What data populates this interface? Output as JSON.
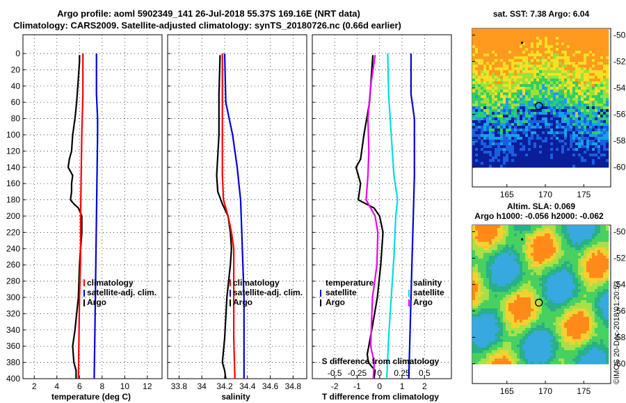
{
  "header": {
    "title_line1": "Argo profile: aoml 5902349_141 26-Jul-2018 55.37S 169.16E (NRT data)",
    "title_line2": "Climatology: CARS2009. Satellite-adjusted climatology: synTS_20180726.nc (0.66d earlier)"
  },
  "colors": {
    "argo": "#000000",
    "climatology": "#ff0000",
    "satellite_adj": "#0000dd",
    "s_difference": "#00dddd",
    "s_diff_clim": "#ee00ee"
  },
  "chart_data": [
    {
      "type": "line",
      "name": "temperature",
      "xlabel": "temperature (deg C)",
      "ylabel": "",
      "xlim": [
        1,
        13.3
      ],
      "ylim": [
        400,
        0
      ],
      "xticks": [
        "2",
        "4",
        "6",
        "8",
        "10",
        "12"
      ],
      "xtick_values": [
        2,
        4,
        6,
        8,
        10,
        12
      ],
      "yticks": [
        "0",
        "20",
        "40",
        "60",
        "80",
        "100",
        "120",
        "140",
        "160",
        "180",
        "200",
        "220",
        "240",
        "260",
        "280",
        "300",
        "320",
        "340",
        "360",
        "380",
        "400"
      ],
      "ytick_values": [
        0,
        20,
        40,
        60,
        80,
        100,
        120,
        140,
        160,
        180,
        200,
        220,
        240,
        260,
        280,
        300,
        320,
        340,
        360,
        380,
        400
      ],
      "grid": true,
      "legend": [
        "climatology",
        "satellite-adj. clim.",
        "Argo"
      ],
      "series": [
        {
          "name": "Argo",
          "color": "#000000",
          "depth": [
            2,
            10,
            20,
            40,
            60,
            80,
            100,
            120,
            130,
            140,
            150,
            160,
            170,
            180,
            185,
            190,
            200,
            220,
            260,
            300,
            340,
            360,
            380,
            390,
            400
          ],
          "values": [
            6.0,
            6.0,
            5.95,
            5.85,
            5.75,
            5.6,
            5.4,
            5.3,
            5.1,
            5.0,
            5.4,
            5.3,
            5.3,
            5.2,
            5.5,
            5.9,
            6.2,
            6.2,
            6.0,
            5.9,
            5.6,
            5.4,
            5.5,
            5.7,
            5.7
          ]
        },
        {
          "name": "climatology",
          "color": "#ff0000",
          "depth": [
            0,
            50,
            100,
            150,
            200,
            250,
            300,
            350,
            400
          ],
          "values": [
            6.3,
            6.3,
            6.2,
            6.15,
            6.1,
            6.1,
            6.0,
            5.95,
            5.9
          ]
        },
        {
          "name": "satellite-adj. clim.",
          "color": "#0000dd",
          "depth": [
            0,
            50,
            80,
            100,
            150,
            200,
            250,
            300,
            350,
            400
          ],
          "values": [
            7.5,
            7.5,
            7.6,
            7.6,
            7.55,
            7.5,
            7.45,
            7.4,
            7.35,
            7.3
          ]
        }
      ]
    },
    {
      "type": "line",
      "name": "salinity",
      "xlabel": "salinity",
      "xlim": [
        33.7,
        34.92
      ],
      "ylim": [
        400,
        0
      ],
      "xticks": [
        "33.8",
        "34",
        "34.2",
        "34.4",
        "34.6",
        "34.8"
      ],
      "xtick_values": [
        33.8,
        34.0,
        34.2,
        34.4,
        34.6,
        34.8
      ],
      "grid": true,
      "legend": [
        "climatology",
        "satellite-adj. clim.",
        "Argo"
      ],
      "series": [
        {
          "name": "Argo",
          "color": "#000000",
          "depth": [
            2,
            50,
            100,
            150,
            170,
            185,
            200,
            220,
            240,
            260,
            300,
            350,
            380,
            390,
            400
          ],
          "values": [
            34.16,
            34.15,
            34.15,
            34.13,
            34.14,
            34.18,
            34.23,
            34.25,
            34.26,
            34.25,
            34.22,
            34.2,
            34.18,
            34.2,
            34.21
          ]
        },
        {
          "name": "climatology",
          "color": "#ff0000",
          "depth": [
            0,
            50,
            100,
            150,
            180,
            200,
            220,
            240,
            300,
            350,
            400
          ],
          "values": [
            34.18,
            34.18,
            34.18,
            34.18,
            34.19,
            34.23,
            34.26,
            34.28,
            34.28,
            34.28,
            34.29
          ]
        },
        {
          "name": "satellite-adj. clim.",
          "color": "#0000dd",
          "depth": [
            0,
            60,
            100,
            140,
            180,
            220,
            260,
            300,
            350,
            400
          ],
          "values": [
            34.2,
            34.21,
            34.27,
            34.31,
            34.34,
            34.35,
            34.36,
            34.37,
            34.37,
            34.37
          ]
        }
      ]
    },
    {
      "type": "line",
      "name": "differences",
      "xlabel": "T difference from climatology",
      "xlabel_top": "S difference from climatology",
      "xlim": [
        -3,
        3.2
      ],
      "ylim": [
        400,
        0
      ],
      "xticks": [
        "-2",
        "-1",
        "0",
        "1",
        "2"
      ],
      "xtick_values": [
        -2,
        -1,
        0,
        1,
        2
      ],
      "xticks_s": [
        "-0.5",
        "-0.25",
        "0",
        "0.25",
        "0.5"
      ],
      "xtick_values_s": [
        -0.5,
        -0.25,
        0,
        0.25,
        0.5
      ],
      "grid": true,
      "legend_left_title": "temperature",
      "legend_left": [
        "satellite",
        "Argo"
      ],
      "legend_right_title": "salinity",
      "legend_right": [
        "satellite",
        "Argo"
      ],
      "series": [
        {
          "name": "T Argo - clim",
          "color": "#000000",
          "depth": [
            2,
            20,
            60,
            100,
            130,
            140,
            160,
            180,
            190,
            200,
            220,
            260,
            300,
            340,
            370,
            380,
            390,
            400
          ],
          "values": [
            -0.3,
            -0.35,
            -0.45,
            -0.7,
            -0.85,
            -1.05,
            -0.85,
            -0.95,
            -0.25,
            0.0,
            0.15,
            0.05,
            -0.1,
            -0.35,
            -0.55,
            -0.5,
            -0.2,
            -0.25
          ]
        },
        {
          "name": "S Argo - clim",
          "color": "#ee00ee",
          "depth": [
            2,
            40,
            80,
            120,
            150,
            180,
            190,
            200,
            220,
            260,
            300,
            360,
            380,
            400
          ],
          "values": [
            -0.05,
            -0.1,
            -0.13,
            -0.12,
            -0.13,
            -0.15,
            -0.1,
            -0.05,
            -0.02,
            -0.03,
            -0.08,
            -0.1,
            -0.06,
            -0.07
          ]
        },
        {
          "name": "S satellite - clim",
          "color": "#00dddd",
          "depth": [
            0,
            50,
            100,
            150,
            180,
            200,
            250,
            300,
            350,
            400
          ],
          "values": [
            0.09,
            0.1,
            0.13,
            0.16,
            0.2,
            0.18,
            0.16,
            0.13,
            0.1,
            0.08
          ]
        },
        {
          "name": "T satellite - clim",
          "color": "#0000dd",
          "depth": [
            0,
            50,
            80,
            100,
            150,
            200,
            250,
            300,
            350,
            400
          ],
          "values": [
            1.4,
            1.4,
            1.55,
            1.55,
            1.55,
            1.5,
            1.45,
            1.4,
            1.35,
            1.3
          ]
        }
      ]
    },
    {
      "type": "heatmap",
      "name": "sst_map",
      "title": "sat. SST: 7.38 Argo: 6.04",
      "xlim": [
        160.5,
        178.5
      ],
      "ylim": [
        -61.5,
        -49.5
      ],
      "xticks": [
        "165",
        "170",
        "175"
      ],
      "xtick_values": [
        165,
        170,
        175
      ],
      "yticks": [
        "-50",
        "-52",
        "-54",
        "-56",
        "-58",
        "-60"
      ],
      "ytick_values": [
        -50,
        -52,
        -54,
        -56,
        -58,
        -60
      ],
      "marker": {
        "lon": 169.16,
        "lat": -55.37
      }
    },
    {
      "type": "heatmap",
      "name": "sla_map",
      "title_line1": "Altim. SLA: 0.069",
      "title_line2": "Argo h1000: -0.056 h2000: -0.062",
      "xlim": [
        160.5,
        178.5
      ],
      "ylim": [
        -61.5,
        -49.5
      ],
      "xticks": [
        "165",
        "170",
        "175"
      ],
      "xtick_values": [
        165,
        170,
        175
      ],
      "yticks": [
        "-50",
        "-52",
        "-54",
        "-56",
        "-58",
        "-60"
      ],
      "ytick_values": [
        -50,
        -52,
        -54,
        -56,
        -58,
        -60
      ],
      "marker": {
        "lon": 169.16,
        "lat": -55.37
      }
    }
  ],
  "footer": {
    "imos_stamp": "©IMOS 20-Dec-2018 01:20:53"
  }
}
